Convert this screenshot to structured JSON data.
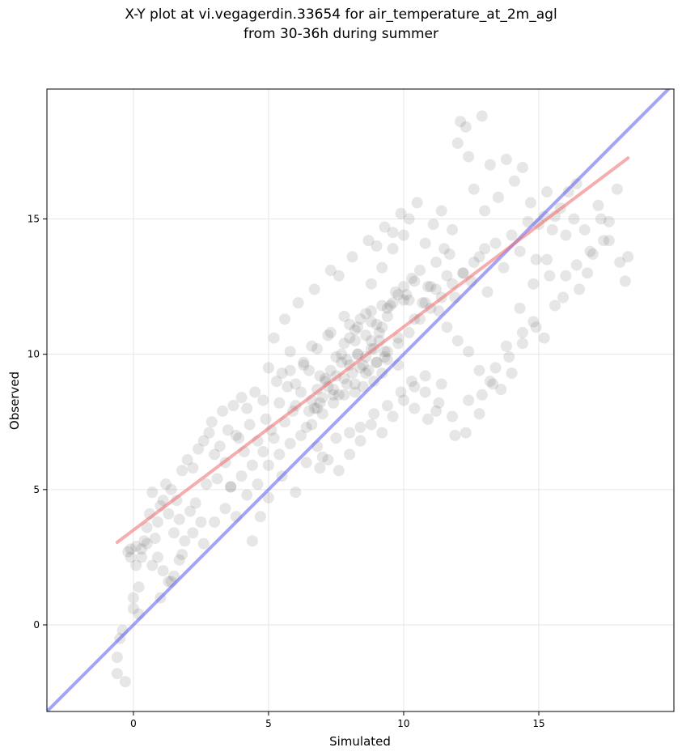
{
  "chart_data": {
    "type": "scatter",
    "title_lines": [
      "X-Y plot at vi.vegagerdin.33654 for air_temperature_at_2m_agl",
      "from 30-36h during summer"
    ],
    "xlabel": "Simulated",
    "ylabel": "Observed",
    "xlim": [
      -3.2,
      20.0
    ],
    "ylim": [
      -3.2,
      19.8
    ],
    "xticks": [
      0,
      5,
      10,
      15
    ],
    "yticks": [
      0,
      5,
      10,
      15
    ],
    "grid": true,
    "colors": {
      "points": "#3a3a3a",
      "identity_line": "#5a5aee",
      "regression_line": "#ee6a6a"
    },
    "identity_line": {
      "x": [
        -3.2,
        20.0
      ],
      "y": [
        -3.2,
        20.0
      ]
    },
    "regression_line": {
      "x": [
        -0.6,
        18.3
      ],
      "y": [
        3.05,
        17.25
      ]
    },
    "points_x": [
      -0.6,
      -0.6,
      -0.5,
      -0.4,
      -0.3,
      -0.2,
      -0.1,
      -0.1,
      0.0,
      0.0,
      0.1,
      0.1,
      0.2,
      0.2,
      0.3,
      0.4,
      0.5,
      0.6,
      0.7,
      0.8,
      0.9,
      1.0,
      1.1,
      1.2,
      1.3,
      1.4,
      1.5,
      1.6,
      1.7,
      1.8,
      2.0,
      2.2,
      2.4,
      2.6,
      2.7,
      2.8,
      2.9,
      3.0,
      3.2,
      3.3,
      3.5,
      3.7,
      3.9,
      4.0,
      4.2,
      4.5,
      4.8,
      5.0,
      5.3,
      5.5,
      5.8,
      6.0,
      6.3,
      6.6,
      6.9,
      7.2,
      7.5,
      7.8,
      8.0,
      8.3,
      8.6,
      8.9,
      9.2,
      9.5,
      9.8,
      10.1,
      10.4,
      10.7,
      11.0,
      11.3,
      11.6,
      11.9,
      12.2,
      12.5,
      12.8,
      13.1,
      13.4,
      13.7,
      14.0,
      14.3,
      14.6,
      14.9,
      15.2,
      15.5,
      15.8,
      16.1,
      16.4,
      16.7,
      17.0,
      17.3,
      17.6,
      17.9,
      18.2,
      18.3,
      12.0,
      12.1,
      12.3,
      12.4,
      12.6,
      12.9,
      13.0,
      13.2,
      13.5,
      13.8,
      14.1,
      14.4,
      14.7,
      15.0,
      15.3,
      15.6,
      16.0,
      16.3,
      16.5,
      16.8,
      17.2,
      17.6,
      18.0,
      3.1,
      3.4,
      3.6,
      3.8,
      4.1,
      4.3,
      4.6,
      4.9,
      5.1,
      5.4,
      5.7,
      5.9,
      6.2,
      6.5,
      6.8,
      7.1,
      7.4,
      7.7,
      7.9,
      8.2,
      8.5,
      8.8,
      9.1,
      9.4,
      9.7,
      10.0,
      10.3,
      10.6,
      10.9,
      11.2,
      11.5,
      11.8,
      2.1,
      2.3,
      2.5,
      1.9,
      1.7,
      1.5,
      1.3,
      1.1,
      0.9,
      0.7,
      0.5,
      0.3,
      5.2,
      5.6,
      6.1,
      6.7,
      7.3,
      7.6,
      8.1,
      8.7,
      9.0,
      9.3,
      9.6,
      9.9,
      10.2,
      10.5,
      10.8,
      11.1,
      11.4,
      11.7,
      4.4,
      4.7,
      5.0,
      5.5,
      6.0,
      6.4,
      6.9,
      7.0,
      7.5,
      8.0,
      8.4,
      8.9,
      9.4,
      9.9,
      10.4,
      10.9,
      11.4,
      11.9,
      12.4,
      12.9,
      13.4,
      13.9,
      14.4,
      14.9,
      15.4,
      15.9,
      16.4,
      16.9,
      17.4,
      8.8,
      9.2,
      9.6,
      10.0,
      10.4,
      10.8,
      11.2,
      11.6,
      12.0,
      12.4,
      12.8,
      13.2,
      13.6,
      14.0,
      14.4,
      14.8,
      15.2,
      15.6,
      16.0,
      5.8,
      6.3,
      6.8,
      7.3,
      7.8,
      8.3,
      8.8,
      9.3,
      9.8,
      10.3,
      10.8,
      11.3,
      11.8,
      12.3,
      12.8,
      13.3,
      13.8,
      14.3,
      14.8,
      15.3,
      3.6,
      4.0,
      4.4,
      4.8,
      5.2,
      5.6,
      6.0,
      6.4,
      6.8,
      7.2,
      7.6,
      8.0,
      8.4,
      8.8,
      9.2,
      9.6,
      10.0,
      10.4,
      10.8,
      11.2,
      1.0,
      1.4,
      1.8,
      2.2,
      2.6,
      3.0,
      3.4,
      3.8,
      4.2,
      4.6,
      5.0,
      5.4,
      5.8,
      6.2,
      6.6,
      7.0,
      7.4,
      7.8,
      8.2,
      8.6,
      9.0,
      9.4,
      9.8,
      10.2,
      10.6,
      11.0,
      11.4,
      11.8,
      12.2,
      12.6,
      13.0,
      7.0,
      7.1,
      7.2,
      7.3,
      7.4,
      7.5,
      7.6,
      7.7,
      7.8,
      7.9,
      8.0,
      8.1,
      8.2,
      8.3,
      8.4,
      8.5,
      8.6,
      8.7,
      8.8,
      8.9,
      9.0,
      9.1,
      9.2,
      9.3,
      9.4,
      6.5,
      6.6,
      6.7,
      6.8,
      6.9,
      8.0,
      8.2,
      8.4,
      8.6,
      8.8,
      9.0,
      9.2,
      9.4,
      9.6,
      9.8,
      10.0,
      10.2
    ],
    "points_y": [
      -1.2,
      -1.8,
      -0.5,
      -0.2,
      -2.1,
      2.7,
      2.8,
      2.5,
      1.0,
      0.6,
      2.2,
      2.9,
      0.4,
      1.4,
      2.5,
      3.1,
      3.6,
      4.1,
      4.9,
      3.2,
      3.8,
      4.4,
      4.6,
      5.2,
      4.1,
      5.0,
      3.4,
      4.6,
      3.9,
      5.7,
      6.1,
      5.8,
      6.5,
      6.8,
      5.2,
      7.1,
      7.5,
      6.3,
      6.6,
      7.9,
      7.2,
      8.1,
      6.9,
      8.4,
      8.0,
      8.6,
      8.3,
      9.5,
      9.0,
      9.3,
      10.1,
      8.9,
      9.6,
      10.3,
      9.2,
      10.7,
      9.9,
      10.4,
      11.1,
      10.0,
      11.5,
      10.2,
      11.0,
      11.8,
      10.6,
      12.2,
      11.3,
      11.9,
      12.5,
      11.6,
      12.9,
      12.1,
      13.0,
      12.7,
      13.6,
      12.3,
      14.1,
      13.2,
      14.4,
      13.8,
      14.9,
      13.5,
      15.1,
      14.6,
      15.4,
      16.0,
      16.3,
      14.6,
      13.7,
      15.0,
      14.9,
      16.1,
      12.7,
      13.6,
      17.8,
      18.6,
      18.4,
      17.3,
      16.1,
      18.8,
      15.3,
      17.0,
      15.8,
      17.2,
      16.4,
      16.9,
      15.6,
      14.8,
      16.0,
      15.1,
      14.4,
      15.0,
      12.4,
      13.0,
      15.5,
      14.2,
      13.4,
      5.4,
      6.0,
      5.1,
      7.0,
      6.4,
      7.4,
      6.8,
      7.6,
      7.2,
      8.2,
      8.8,
      7.9,
      8.6,
      9.4,
      8.0,
      9.1,
      8.5,
      10.0,
      9.8,
      10.5,
      9.6,
      11.2,
      10.8,
      11.7,
      12.3,
      12.0,
      12.8,
      13.1,
      12.5,
      13.4,
      13.9,
      14.6,
      4.2,
      4.5,
      3.8,
      3.1,
      2.4,
      1.8,
      1.6,
      2.0,
      2.5,
      2.2,
      3.0,
      2.8,
      10.6,
      11.3,
      11.9,
      12.4,
      13.1,
      12.9,
      13.6,
      14.2,
      14.0,
      14.7,
      14.5,
      15.2,
      15.0,
      15.6,
      14.1,
      14.8,
      15.3,
      13.7,
      3.1,
      4.0,
      4.7,
      5.5,
      4.9,
      6.0,
      5.8,
      6.2,
      6.9,
      7.1,
      7.3,
      7.8,
      8.1,
      8.6,
      8.0,
      7.6,
      8.9,
      7.0,
      8.3,
      8.5,
      9.5,
      9.9,
      10.8,
      11.0,
      12.9,
      12.1,
      13.3,
      13.8,
      14.2,
      12.6,
      13.2,
      13.9,
      14.4,
      12.7,
      11.9,
      12.4,
      11.0,
      10.5,
      10.1,
      9.4,
      9.0,
      8.7,
      9.3,
      10.4,
      11.2,
      10.6,
      11.8,
      12.9,
      9.4,
      9.7,
      10.2,
      10.8,
      11.4,
      11.0,
      10.5,
      9.9,
      9.6,
      9.0,
      8.6,
      8.2,
      7.7,
      7.1,
      7.8,
      8.9,
      10.3,
      11.7,
      12.6,
      13.5,
      5.1,
      5.5,
      5.9,
      6.4,
      6.9,
      7.5,
      8.1,
      7.3,
      6.6,
      6.1,
      5.7,
      6.3,
      6.8,
      7.4,
      7.1,
      7.7,
      8.3,
      8.8,
      9.2,
      7.9,
      1.0,
      1.6,
      2.6,
      3.4,
      3.0,
      3.8,
      4.3,
      4.0,
      4.8,
      5.2,
      5.9,
      6.3,
      6.7,
      7.0,
      7.4,
      7.8,
      8.2,
      8.5,
      8.9,
      9.3,
      9.7,
      10.1,
      10.4,
      10.8,
      11.3,
      11.7,
      12.1,
      12.6,
      13.0,
      13.4,
      13.9,
      8.4,
      9.0,
      8.8,
      9.4,
      8.7,
      9.2,
      8.5,
      9.7,
      9.1,
      8.9,
      9.6,
      9.3,
      8.6,
      10.0,
      9.5,
      8.8,
      9.9,
      9.4,
      10.2,
      9.0,
      9.7,
      10.5,
      9.3,
      10.1,
      9.8,
      7.9,
      8.3,
      8.0,
      8.7,
      8.2,
      10.6,
      10.9,
      11.3,
      10.7,
      11.6,
      11.1,
      11.8,
      11.4,
      11.9,
      12.2,
      12.5,
      12.0
    ]
  }
}
